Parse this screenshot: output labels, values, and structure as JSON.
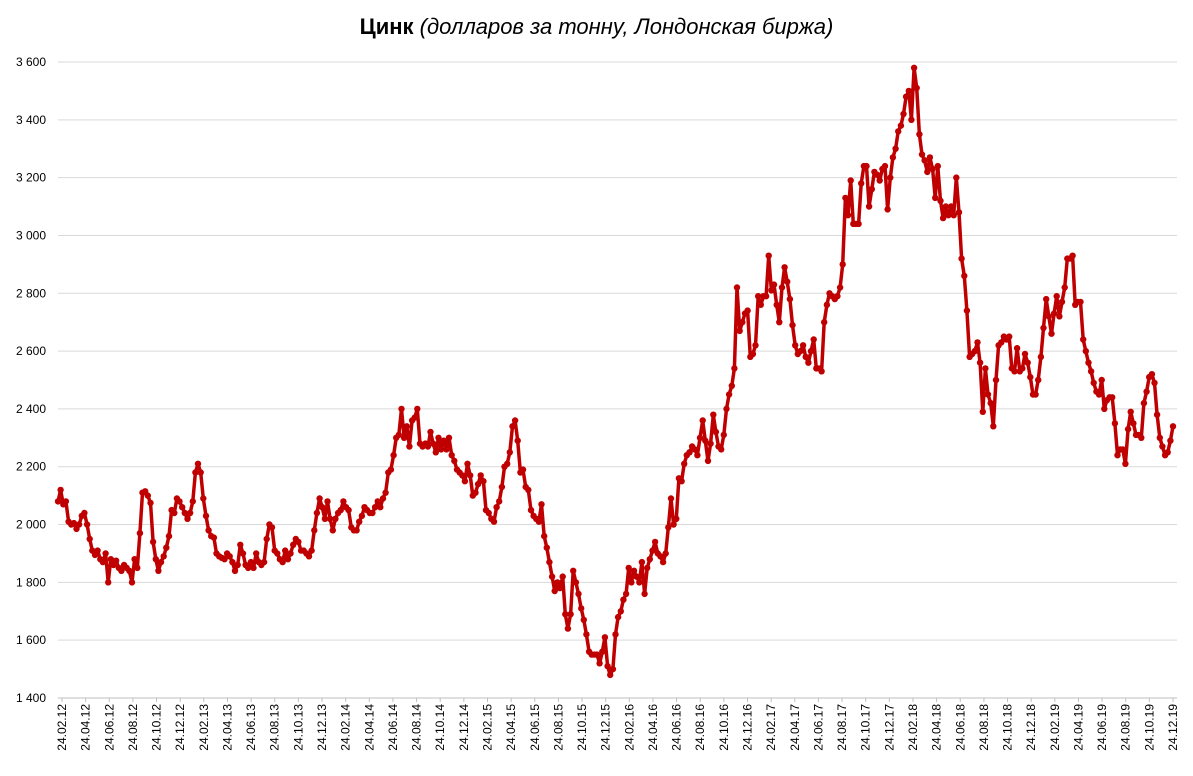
{
  "title": "Цинк",
  "subtitle": "(долларов за тонну, Лондонская биржа)",
  "chart_data": {
    "type": "line",
    "ylim": [
      1400,
      3600
    ],
    "ystep": 200,
    "ytick_labels": [
      "1 400",
      "1 600",
      "1 800",
      "2 000",
      "2 200",
      "2 400",
      "2 600",
      "2 800",
      "3 000",
      "3 200",
      "3 400",
      "3 600"
    ],
    "xtick_labels": [
      "24.02.12",
      "24.04.12",
      "24.06.12",
      "24.08.12",
      "24.10.12",
      "24.12.12",
      "24.02.13",
      "24.04.13",
      "24.06.13",
      "24.08.13",
      "24.10.13",
      "24.12.13",
      "24.02.14",
      "24.04.14",
      "24.06.14",
      "24.08.14",
      "24.10.14",
      "24.12.14",
      "24.02.15",
      "24.04.15",
      "24.06.15",
      "24.08.15",
      "24.10.15",
      "24.12.15",
      "24.02.16",
      "24.04.16",
      "24.06.16",
      "24.08.16",
      "24.10.16",
      "24.12.16",
      "24.02.17",
      "24.04.17",
      "24.06.17",
      "24.08.17",
      "24.10.17",
      "24.12.17",
      "24.02.18",
      "24.04.18",
      "24.06.18",
      "24.08.18",
      "24.10.18",
      "24.12.18",
      "24.02.19",
      "24.04.19",
      "24.06.19",
      "24.08.19",
      "24.10.19",
      "24.12.19"
    ],
    "grid": true,
    "legend": "none",
    "line_color": "#c00000",
    "series": [
      {
        "name": "",
        "values": [
          2080,
          2120,
          2070,
          2080,
          2010,
          2000,
          2005,
          1985,
          2000,
          2030,
          2040,
          2000,
          1950,
          1910,
          1895,
          1910,
          1880,
          1870,
          1900,
          1800,
          1880,
          1860,
          1875,
          1850,
          1840,
          1860,
          1850,
          1840,
          1800,
          1880,
          1850,
          1970,
          2110,
          2115,
          2100,
          2075,
          1940,
          1880,
          1840,
          1870,
          1890,
          1920,
          1960,
          2050,
          2040,
          2090,
          2080,
          2060,
          2040,
          2020,
          2040,
          2080,
          2180,
          2210,
          2180,
          2090,
          2030,
          1980,
          1960,
          1955,
          1900,
          1890,
          1885,
          1880,
          1900,
          1890,
          1870,
          1840,
          1860,
          1930,
          1900,
          1860,
          1850,
          1870,
          1850,
          1900,
          1870,
          1860,
          1870,
          1950,
          2000,
          1990,
          1910,
          1900,
          1880,
          1870,
          1910,
          1880,
          1900,
          1930,
          1950,
          1940,
          1910,
          1910,
          1900,
          1890,
          1910,
          1980,
          2040,
          2090,
          2060,
          2020,
          2080,
          2020,
          1980,
          2020,
          2040,
          2050,
          2080,
          2060,
          2050,
          1990,
          1980,
          1980,
          2010,
          2030,
          2060,
          2050,
          2040,
          2040,
          2060,
          2080,
          2060,
          2090,
          2110,
          2180,
          2190,
          2240,
          2300,
          2310,
          2400,
          2300,
          2340,
          2270,
          2360,
          2370,
          2400,
          2280,
          2270,
          2280,
          2270,
          2320,
          2280,
          2250,
          2300,
          2260,
          2290,
          2260,
          2300,
          2240,
          2220,
          2190,
          2180,
          2170,
          2150,
          2210,
          2170,
          2100,
          2110,
          2140,
          2170,
          2150,
          2050,
          2040,
          2020,
          2010,
          2060,
          2080,
          2130,
          2200,
          2210,
          2250,
          2340,
          2360,
          2290,
          2180,
          2190,
          2130,
          2120,
          2050,
          2030,
          2020,
          2010,
          2070,
          1960,
          1920,
          1870,
          1820,
          1770,
          1800,
          1780,
          1820,
          1690,
          1640,
          1690,
          1840,
          1800,
          1760,
          1710,
          1670,
          1620,
          1560,
          1550,
          1550,
          1550,
          1520,
          1560,
          1610,
          1510,
          1480,
          1500,
          1620,
          1680,
          1700,
          1740,
          1760,
          1850,
          1800,
          1840,
          1820,
          1800,
          1870,
          1760,
          1850,
          1880,
          1910,
          1940,
          1900,
          1890,
          1870,
          1900,
          1990,
          2090,
          2000,
          2020,
          2160,
          2150,
          2210,
          2240,
          2250,
          2270,
          2260,
          2240,
          2300,
          2360,
          2290,
          2220,
          2280,
          2380,
          2320,
          2270,
          2260,
          2310,
          2400,
          2450,
          2480,
          2540,
          2820,
          2670,
          2700,
          2730,
          2740,
          2580,
          2590,
          2620,
          2790,
          2760,
          2790,
          2790,
          2930,
          2810,
          2830,
          2760,
          2700,
          2820,
          2890,
          2840,
          2780,
          2690,
          2620,
          2590,
          2600,
          2620,
          2580,
          2560,
          2600,
          2640,
          2540,
          2540,
          2530,
          2700,
          2760,
          2800,
          2790,
          2780,
          2790,
          2820,
          2900,
          3130,
          3070,
          3190,
          3040,
          3040,
          3040,
          3180,
          3240,
          3240,
          3100,
          3160,
          3220,
          3210,
          3190,
          3230,
          3240,
          3090,
          3200,
          3270,
          3300,
          3360,
          3380,
          3420,
          3480,
          3500,
          3400,
          3580,
          3510,
          3350,
          3280,
          3260,
          3220,
          3270,
          3230,
          3130,
          3240,
          3120,
          3060,
          3100,
          3070,
          3100,
          3070,
          3200,
          3080,
          2920,
          2860,
          2740,
          2580,
          2590,
          2600,
          2630,
          2560,
          2390,
          2540,
          2450,
          2420,
          2340,
          2500,
          2620,
          2630,
          2650,
          2640,
          2650,
          2540,
          2530,
          2610,
          2530,
          2540,
          2590,
          2560,
          2510,
          2450,
          2450,
          2500,
          2580,
          2680,
          2780,
          2720,
          2660,
          2730,
          2790,
          2720,
          2770,
          2820,
          2920,
          2920,
          2930,
          2760,
          2770,
          2770,
          2640,
          2600,
          2560,
          2530,
          2490,
          2460,
          2450,
          2500,
          2400,
          2430,
          2440,
          2440,
          2350,
          2240,
          2260,
          2260,
          2210,
          2330,
          2390,
          2350,
          2310,
          2310,
          2300,
          2420,
          2460,
          2510,
          2520,
          2490,
          2380,
          2300,
          2270,
          2240,
          2250,
          2290,
          2340
        ]
      }
    ]
  }
}
